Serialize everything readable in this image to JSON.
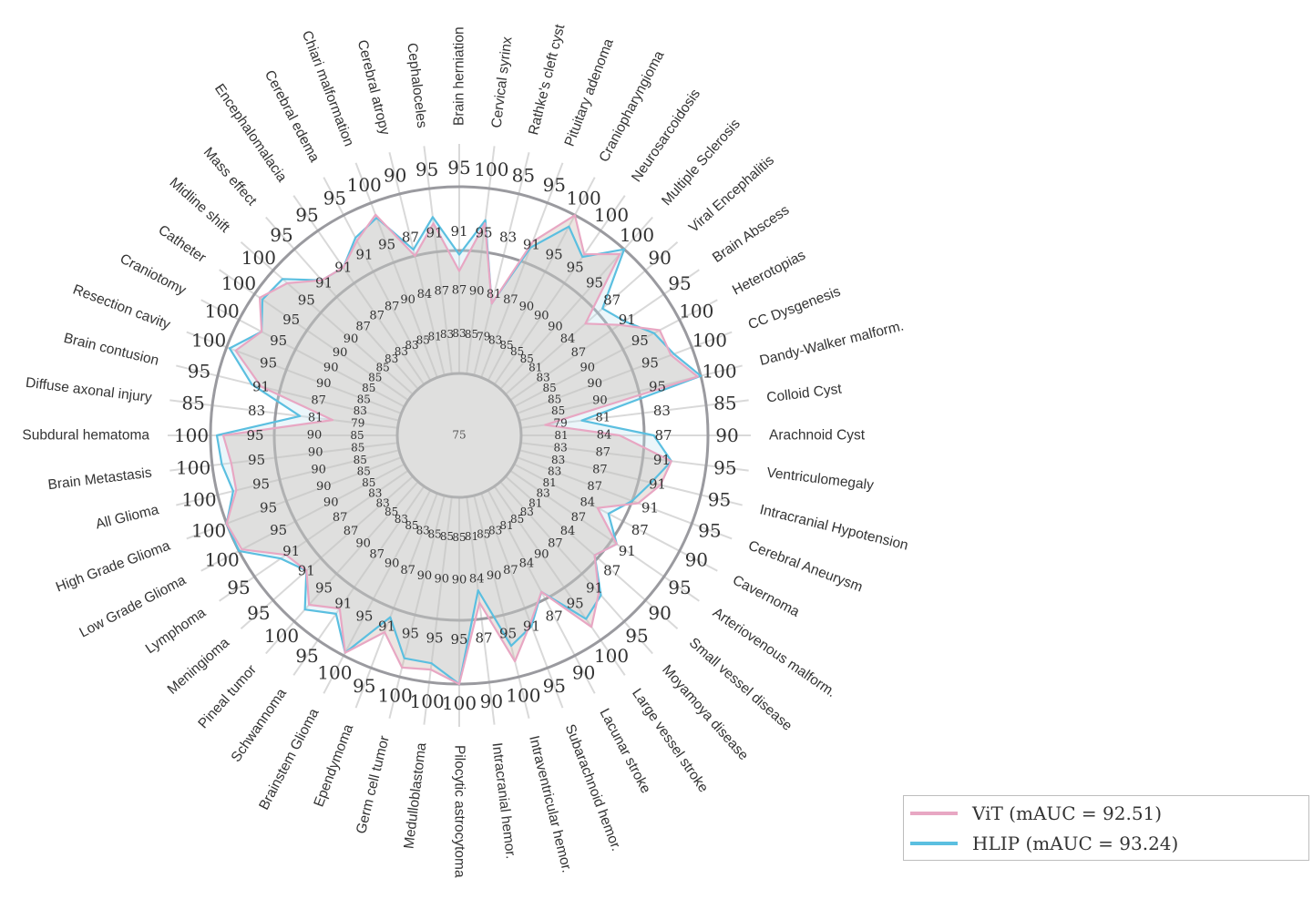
{
  "chart_data": {
    "type": "radar",
    "center_label": "75",
    "categories": [
      "Brain herniation",
      "Cervical syrinx",
      "Rathke's cleft cyst",
      "Pituitary adenoma",
      "Craniopharyngioma",
      "Neurosarcoidosis",
      "Multiple Sclerosis",
      "Viral Encephalitis",
      "Brain Abscess",
      "Heterotopias",
      "CC Dysgenesis",
      "Dandy-Walker malform.",
      "Colloid Cyst",
      "Arachnoid Cyst",
      "Ventriculomegaly",
      "Intracranial Hypotension",
      "Cerebral Aneurysm",
      "Cavernoma",
      "Arteriovenous malform.",
      "Small vessel disease",
      "Moyamoya disease",
      "Large vessel stroke",
      "Lacunar stroke",
      "Subarachnoid hemor.",
      "Intraventricular hemor.",
      "Intracranial hemor.",
      "Pilocytic astrocytoma",
      "Medulloblastoma",
      "Germ cell tumor",
      "Ependymoma",
      "Brainstem Glioma",
      "Schwannoma",
      "Pineal tumor",
      "Meningioma",
      "Lymphoma",
      "Low Grade Glioma",
      "High Grade Glioma",
      "All Glioma",
      "Brain Metastasis",
      "Subdural hematoma",
      "Diffuse axonal injury",
      "Brain contusion",
      "Resection cavity",
      "Craniotomy",
      "Catheter",
      "Midline shift",
      "Mass effect",
      "Encephalomalacia",
      "Cerebral edema",
      "Chiari malformation",
      "Cerebral atropy",
      "Cephaloceles"
    ],
    "tick_labels": {
      "outer": [
        "95",
        "100",
        "85",
        "95",
        "100",
        "100",
        "100",
        "90",
        "95",
        "100",
        "100",
        "100",
        "85",
        "90",
        "95",
        "95",
        "95",
        "90",
        "95",
        "90",
        "95",
        "100",
        "90",
        "95",
        "100",
        "90",
        "100",
        "100",
        "100",
        "95",
        "100",
        "95",
        "100",
        "95",
        "95",
        "100",
        "100",
        "100",
        "100",
        "100",
        "85",
        "95",
        "100",
        "100",
        "100",
        "100",
        "95",
        "95",
        "95",
        "100",
        "90",
        "95"
      ],
      "mid": [
        "91",
        "95",
        "83",
        "91",
        "95",
        "95",
        "95",
        "87",
        "91",
        "95",
        "95",
        "95",
        "83",
        "87",
        "91",
        "91",
        "91",
        "87",
        "91",
        "87",
        "91",
        "95",
        "87",
        "91",
        "95",
        "87",
        "95",
        "95",
        "95",
        "91",
        "95",
        "91",
        "95",
        "91",
        "91",
        "95",
        "95",
        "95",
        "95",
        "95",
        "83",
        "91",
        "95",
        "95",
        "95",
        "95",
        "91",
        "91",
        "91",
        "95",
        "87",
        "91"
      ],
      "inner1": [
        "87",
        "90",
        "81",
        "87",
        "90",
        "90",
        "90",
        "84",
        "87",
        "90",
        "90",
        "90",
        "81",
        "84",
        "87",
        "87",
        "87",
        "84",
        "87",
        "84",
        "87",
        "90",
        "84",
        "87",
        "90",
        "84",
        "90",
        "90",
        "90",
        "87",
        "90",
        "87",
        "90",
        "87",
        "87",
        "90",
        "90",
        "90",
        "90",
        "90",
        "81",
        "87",
        "90",
        "90",
        "90",
        "90",
        "87",
        "87",
        "87",
        "90",
        "84",
        "87"
      ],
      "inner2": [
        "83",
        "85",
        "79",
        "83",
        "85",
        "85",
        "85",
        "81",
        "83",
        "85",
        "85",
        "85",
        "79",
        "81",
        "83",
        "83",
        "83",
        "81",
        "83",
        "81",
        "83",
        "85",
        "81",
        "83",
        "85",
        "81",
        "85",
        "85",
        "85",
        "83",
        "85",
        "83",
        "85",
        "83",
        "83",
        "85",
        "85",
        "85",
        "85",
        "85",
        "79",
        "83",
        "85",
        "85",
        "85",
        "85",
        "83",
        "83",
        "83",
        "85",
        "81",
        "83"
      ]
    },
    "series": [
      {
        "name": "ViT (mAUC = 92.51)",
        "color": "#e8a7c3",
        "values": [
          87.5,
          94.5,
          84.0,
          93.5,
          100.0,
          95.5,
          99.0,
          88.0,
          91.5,
          96.5,
          96.5,
          99.5,
          78.0,
          87.0,
          94.5,
          93.5,
          91.0,
          86.5,
          91.0,
          89.5,
          94.0,
          97.5,
          89.0,
          92.5,
          97.5,
          88.0,
          100.0,
          98.0,
          98.5,
          94.0,
          99.5,
          94.0,
          96.5,
          93.0,
          94.0,
          99.5,
          100.0,
          97.0,
          97.0,
          98.0,
          83.0,
          93.0,
          98.5,
          96.0,
          99.0,
          97.0,
          93.5,
          93.0,
          95.5,
          98.0,
          90.0,
          94.5
        ]
      },
      {
        "name": "HLIP (mAUC = 93.24)",
        "color": "#5bbfe0",
        "values": [
          89.5,
          95.0,
          84.0,
          92.5,
          98.0,
          95.0,
          100.0,
          91.0,
          92.5,
          95.5,
          97.0,
          100.0,
          82.5,
          91.5,
          94.5,
          92.0,
          90.0,
          88.0,
          91.0,
          89.5,
          94.5,
          96.0,
          89.0,
          93.0,
          95.0,
          86.5,
          100.0,
          97.0,
          97.0,
          91.5,
          99.5,
          95.0,
          97.5,
          93.0,
          95.0,
          100.0,
          100.0,
          97.5,
          98.5,
          99.0,
          87.0,
          94.5,
          99.5,
          96.0,
          98.5,
          98.0,
          93.5,
          93.0,
          96.0,
          97.5,
          91.0,
          95.5
        ]
      }
    ],
    "legend_position": "bottom-right",
    "grid": true
  },
  "legend": {
    "items": [
      {
        "label": "ViT (mAUC = 92.51)",
        "color": "#e8a7c3"
      },
      {
        "label": "HLIP (mAUC = 93.24)",
        "color": "#5bbfe0"
      }
    ]
  }
}
